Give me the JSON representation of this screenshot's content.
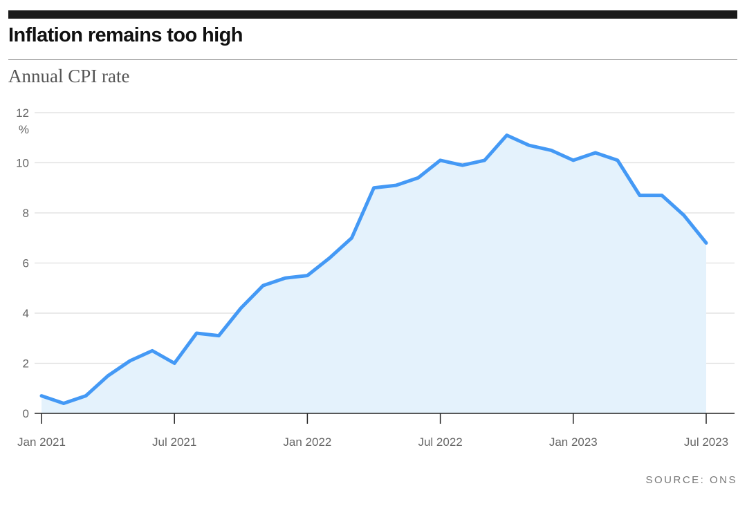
{
  "header": {
    "title": "Inflation remains too high",
    "subtitle": "Annual CPI rate"
  },
  "footer": {
    "source": "SOURCE: ONS"
  },
  "colors": {
    "line": "#4499f5",
    "area": "#e4f2fc",
    "grid": "#dddddd",
    "axis": "#222222"
  },
  "chart_data": {
    "type": "area",
    "title": "Inflation remains too high",
    "subtitle": "Annual CPI rate",
    "ylabel": "%",
    "xlabel": "",
    "ylim": [
      0,
      12
    ],
    "yticks": [
      "0",
      "2",
      "4",
      "6",
      "8",
      "10",
      "12"
    ],
    "xticks": [
      {
        "label": "Jan 2021",
        "index": 0
      },
      {
        "label": "Jul 2021",
        "index": 6
      },
      {
        "label": "Jan 2022",
        "index": 12
      },
      {
        "label": "Jul 2022",
        "index": 18
      },
      {
        "label": "Jan 2023",
        "index": 24
      },
      {
        "label": "Jul 2023",
        "index": 30
      }
    ],
    "grid": true,
    "legend": "none",
    "series": [
      {
        "x": [
          "2021-01",
          "2021-02",
          "2021-03",
          "2021-04",
          "2021-05",
          "2021-06",
          "2021-07",
          "2021-08",
          "2021-09",
          "2021-10",
          "2021-11",
          "2021-12",
          "2022-01",
          "2022-02",
          "2022-03",
          "2022-04",
          "2022-05",
          "2022-06",
          "2022-07",
          "2022-08",
          "2022-09",
          "2022-10",
          "2022-11",
          "2022-12",
          "2023-01",
          "2023-02",
          "2023-03",
          "2023-04",
          "2023-05",
          "2023-06",
          "2023-07"
        ],
        "values": [
          0.7,
          0.4,
          0.7,
          1.5,
          2.1,
          2.5,
          2.0,
          3.2,
          3.1,
          4.2,
          5.1,
          5.4,
          5.5,
          6.2,
          7.0,
          9.0,
          9.1,
          9.4,
          10.1,
          9.9,
          10.1,
          11.1,
          10.7,
          10.5,
          10.1,
          10.4,
          10.1,
          8.7,
          8.7,
          7.9,
          6.8
        ]
      }
    ]
  }
}
